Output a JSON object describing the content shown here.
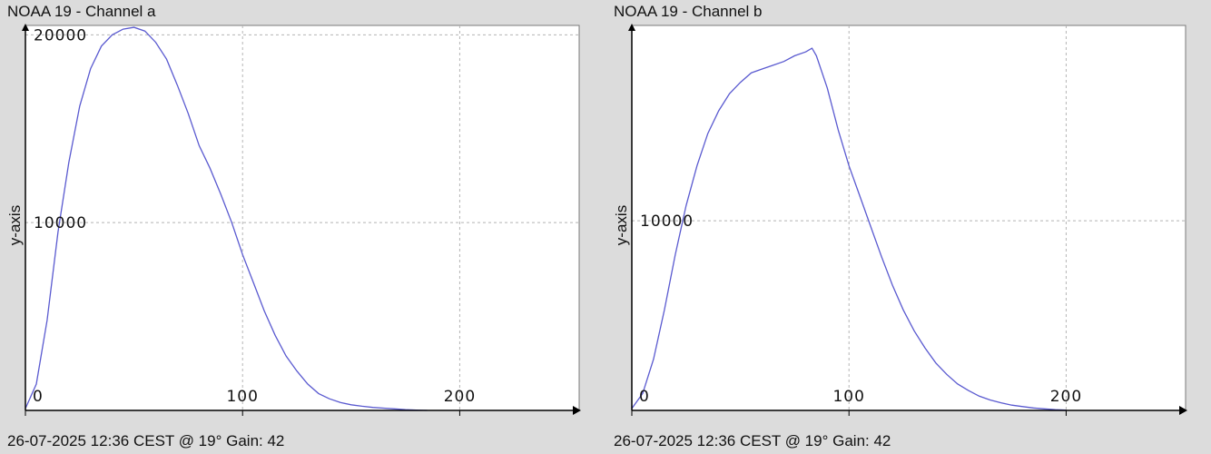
{
  "colors": {
    "line": "#5a5ad0",
    "grid": "#b4b4b4",
    "axis": "#000000",
    "plot_bg": "#ffffff",
    "page_bg": "#dcdcdc"
  },
  "panels": [
    {
      "title": "NOAA 19 - Channel a",
      "footer": "26-07-2025 12:36 CEST @ 19° Gain: 42",
      "ylabel": "y-axis",
      "xticks": [
        "0",
        "100",
        "200"
      ],
      "yticks": [
        "10000",
        "20000"
      ]
    },
    {
      "title": "NOAA 19 - Channel b",
      "footer": "26-07-2025 12:36 CEST @ 19° Gain: 42",
      "ylabel": "y-axis",
      "xticks": [
        "0",
        "100",
        "200"
      ],
      "yticks": [
        "10000"
      ]
    }
  ],
  "chart_data": [
    {
      "type": "line",
      "title": "NOAA 19 - Channel a",
      "xlabel": "",
      "ylabel": "y-axis",
      "xlim": [
        0,
        255
      ],
      "ylim": [
        0,
        20500
      ],
      "grid": true,
      "xticks": [
        0,
        100,
        200
      ],
      "yticks": [
        10000,
        20000
      ],
      "series": [
        {
          "x": [
            0,
            5,
            10,
            15,
            20,
            25,
            30,
            35,
            40,
            45,
            50,
            55,
            60,
            65,
            70,
            75,
            80,
            85,
            90,
            95,
            100,
            105,
            110,
            115,
            120,
            125,
            130,
            135,
            140,
            145,
            150,
            155,
            160,
            165,
            170,
            175,
            180,
            185
          ],
          "y": [
            100,
            1400,
            4800,
            9500,
            13200,
            16200,
            18200,
            19400,
            20000,
            20300,
            20400,
            20200,
            19600,
            18700,
            17300,
            15800,
            14100,
            12900,
            11500,
            10000,
            8300,
            6800,
            5300,
            4000,
            2900,
            2100,
            1400,
            900,
            620,
            420,
            300,
            220,
            160,
            120,
            80,
            40,
            20,
            0
          ]
        }
      ]
    },
    {
      "type": "line",
      "title": "NOAA 19 - Channel b",
      "xlabel": "",
      "ylabel": "y-axis",
      "xlim": [
        0,
        255
      ],
      "ylim": [
        0,
        20300
      ],
      "grid": true,
      "xticks": [
        0,
        100,
        200
      ],
      "yticks": [
        10000
      ],
      "series": [
        {
          "x": [
            0,
            5,
            10,
            15,
            20,
            25,
            30,
            35,
            40,
            45,
            50,
            55,
            60,
            65,
            70,
            75,
            80,
            83,
            85,
            90,
            95,
            100,
            105,
            110,
            115,
            120,
            125,
            130,
            135,
            140,
            145,
            150,
            155,
            160,
            165,
            170,
            175,
            180,
            185,
            190,
            195,
            200
          ],
          "y": [
            100,
            900,
            2700,
            5300,
            8200,
            10800,
            12900,
            14600,
            15800,
            16700,
            17300,
            17800,
            18000,
            18200,
            18400,
            18700,
            18900,
            19100,
            18700,
            17000,
            14800,
            12900,
            11300,
            9700,
            8100,
            6600,
            5300,
            4200,
            3300,
            2500,
            1900,
            1400,
            1050,
            750,
            550,
            400,
            280,
            200,
            130,
            80,
            40,
            20
          ]
        }
      ]
    }
  ]
}
